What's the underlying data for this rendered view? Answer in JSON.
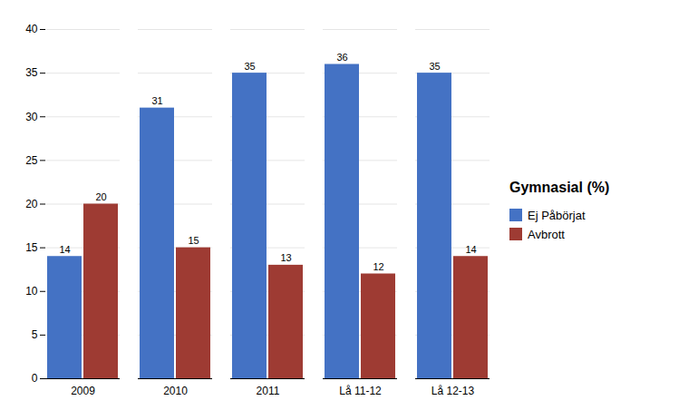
{
  "chart_data": {
    "type": "bar",
    "title": "Gymnasial (%)",
    "categories": [
      "2009",
      "2010",
      "2011",
      "Lå 11-12",
      "Lå 12-13"
    ],
    "series": [
      {
        "name": "Ej Påbörjat",
        "color": "#4472C4",
        "values": [
          14,
          31,
          35,
          36,
          35
        ]
      },
      {
        "name": "Avbrott",
        "color": "#9E3B33",
        "values": [
          20,
          15,
          13,
          12,
          14
        ]
      }
    ],
    "ylim": [
      0,
      40
    ],
    "yticks": [
      0,
      5,
      10,
      15,
      20,
      25,
      30,
      35,
      40
    ],
    "grid": true,
    "legend": "right",
    "data_labels": true
  }
}
